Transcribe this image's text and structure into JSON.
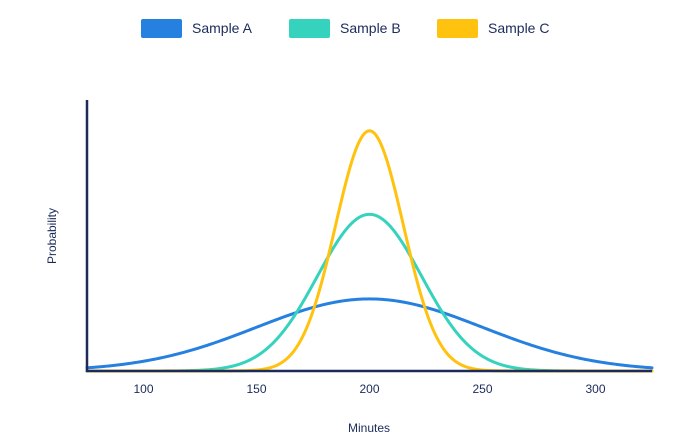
{
  "chart_data": {
    "type": "line",
    "title": "",
    "xlabel": "Minutes",
    "ylabel": "Probability",
    "xlim": [
      75,
      325
    ],
    "ylim": [
      0,
      0.03
    ],
    "x_ticks": [
      100,
      150,
      200,
      250,
      300
    ],
    "y_ticks": [],
    "grid": false,
    "legend_position": "top",
    "series": [
      {
        "name": "Sample A",
        "color": "#2680e0",
        "distribution": "normal",
        "mean": 200,
        "sd": 50,
        "x": [
          75,
          100,
          125,
          150,
          175,
          200,
          225,
          250,
          275,
          300,
          325
        ],
        "y": [
          0.0004,
          0.0011,
          0.0026,
          0.0048,
          0.007,
          0.008,
          0.007,
          0.0048,
          0.0026,
          0.0011,
          0.0004
        ]
      },
      {
        "name": "Sample B",
        "color": "#35d3bd",
        "distribution": "normal",
        "mean": 200,
        "sd": 23,
        "x": [
          120,
          140,
          160,
          180,
          200,
          220,
          240,
          260,
          280
        ],
        "y": [
          0.0,
          0.0006,
          0.0038,
          0.0119,
          0.0173,
          0.0119,
          0.0038,
          0.0006,
          0.0
        ]
      },
      {
        "name": "Sample C",
        "color": "#ffc20e",
        "distribution": "normal",
        "mean": 200,
        "sd": 15,
        "x": [
          155,
          170,
          180,
          190,
          200,
          210,
          220,
          230,
          245
        ],
        "y": [
          0.0001,
          0.0036,
          0.0109,
          0.0213,
          0.0266,
          0.0213,
          0.0109,
          0.0036,
          0.0001
        ]
      }
    ]
  }
}
